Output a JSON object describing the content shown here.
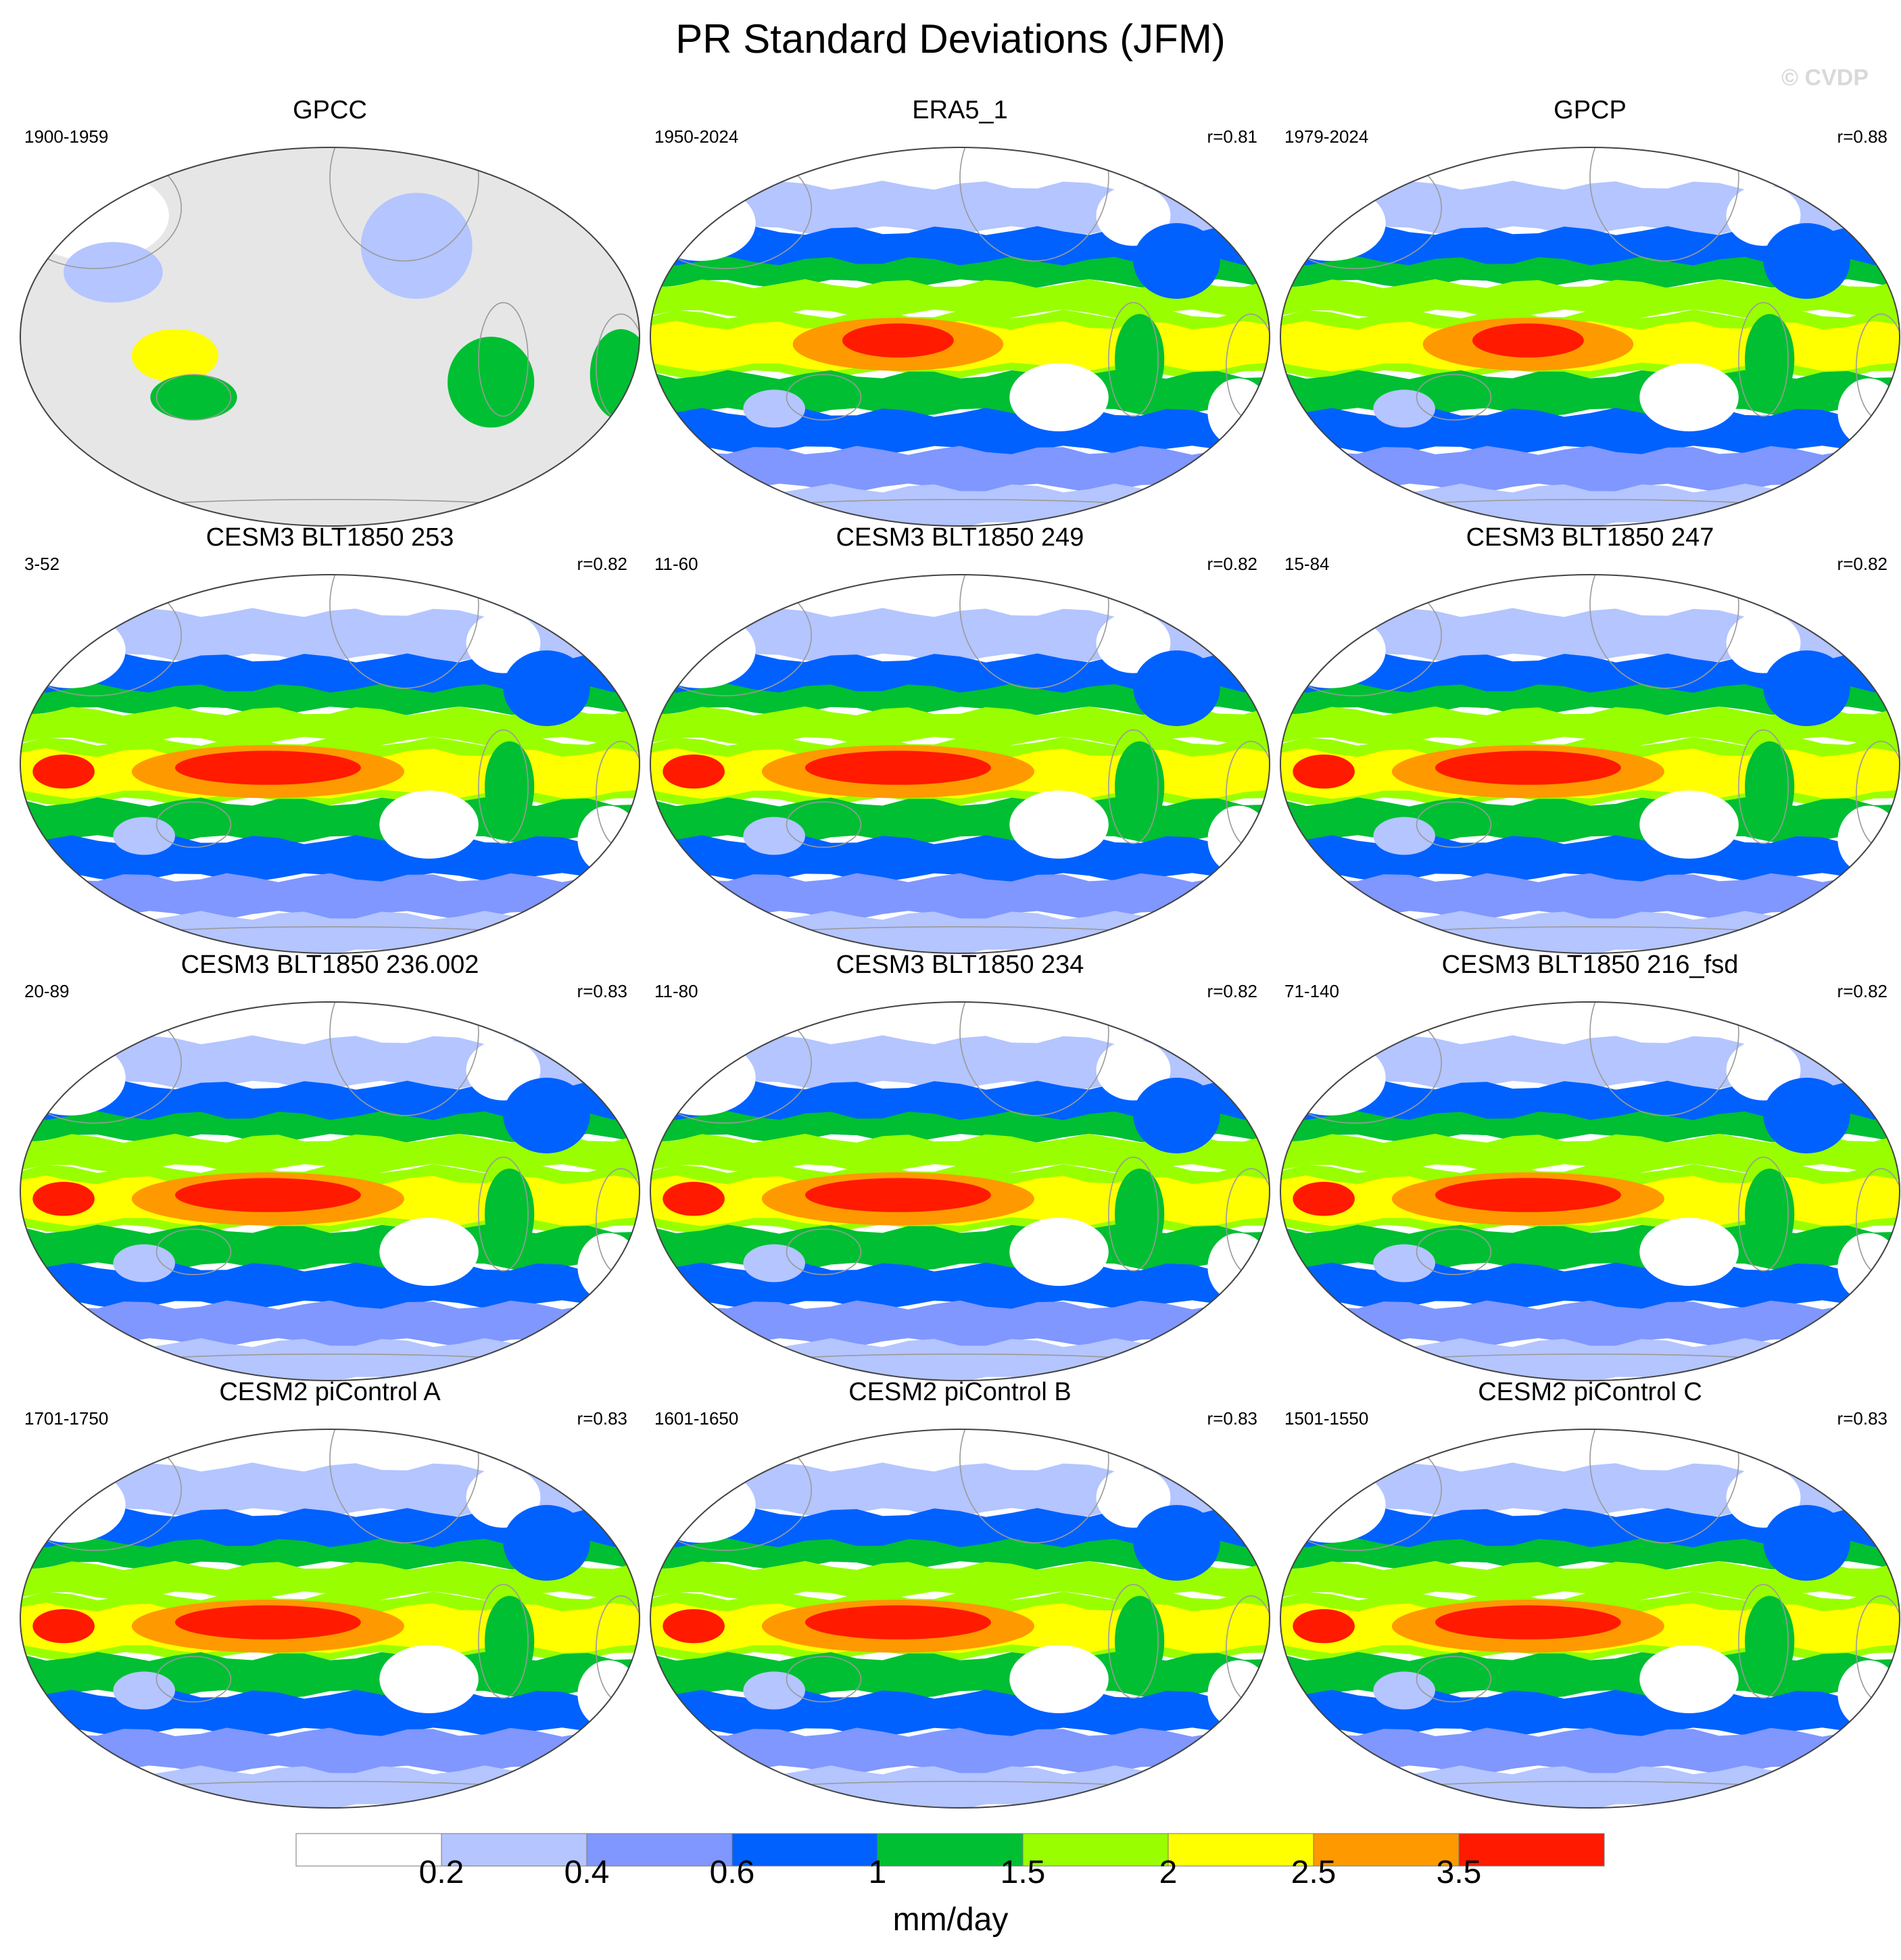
{
  "figure": {
    "title": "PR Standard Deviations (JFM)",
    "credit": "© CVDP"
  },
  "panels": [
    {
      "title": "GPCC",
      "range": "1900-1959",
      "r": "",
      "style": "gpcc"
    },
    {
      "title": "ERA5_1",
      "range": "1950-2024",
      "r": "r=0.81",
      "style": "obs"
    },
    {
      "title": "GPCP",
      "range": "1979-2024",
      "r": "r=0.88",
      "style": "obs"
    },
    {
      "title": "CESM3 BLT1850 253",
      "range": "3-52",
      "r": "r=0.82",
      "style": "model"
    },
    {
      "title": "CESM3 BLT1850 249",
      "range": "11-60",
      "r": "r=0.82",
      "style": "model"
    },
    {
      "title": "CESM3 BLT1850 247",
      "range": "15-84",
      "r": "r=0.82",
      "style": "model"
    },
    {
      "title": "CESM3 BLT1850 236.002",
      "range": "20-89",
      "r": "r=0.83",
      "style": "model"
    },
    {
      "title": "CESM3 BLT1850 234",
      "range": "11-80",
      "r": "r=0.82",
      "style": "model"
    },
    {
      "title": "CESM3 BLT1850 216_fsd",
      "range": "71-140",
      "r": "r=0.82",
      "style": "model"
    },
    {
      "title": "CESM2 piControl A",
      "range": "1701-1750",
      "r": "r=0.83",
      "style": "model"
    },
    {
      "title": "CESM2 piControl B",
      "range": "1601-1650",
      "r": "r=0.83",
      "style": "model"
    },
    {
      "title": "CESM2 piControl C",
      "range": "1501-1550",
      "r": "r=0.83",
      "style": "model"
    }
  ],
  "colorbar": {
    "levels": [
      "0.2",
      "0.4",
      "0.6",
      "1",
      "1.5",
      "2",
      "2.5",
      "3.5"
    ],
    "colors": [
      "#ffffff",
      "#b4c5ff",
      "#7f97ff",
      "#0061ff",
      "#00bf32",
      "#99ff00",
      "#ffff00",
      "#ff9900",
      "#ff1a00"
    ],
    "units": "mm/day"
  },
  "styles": {
    "land_missing": "#e6e6e6",
    "coast": "#9a9a9a"
  }
}
